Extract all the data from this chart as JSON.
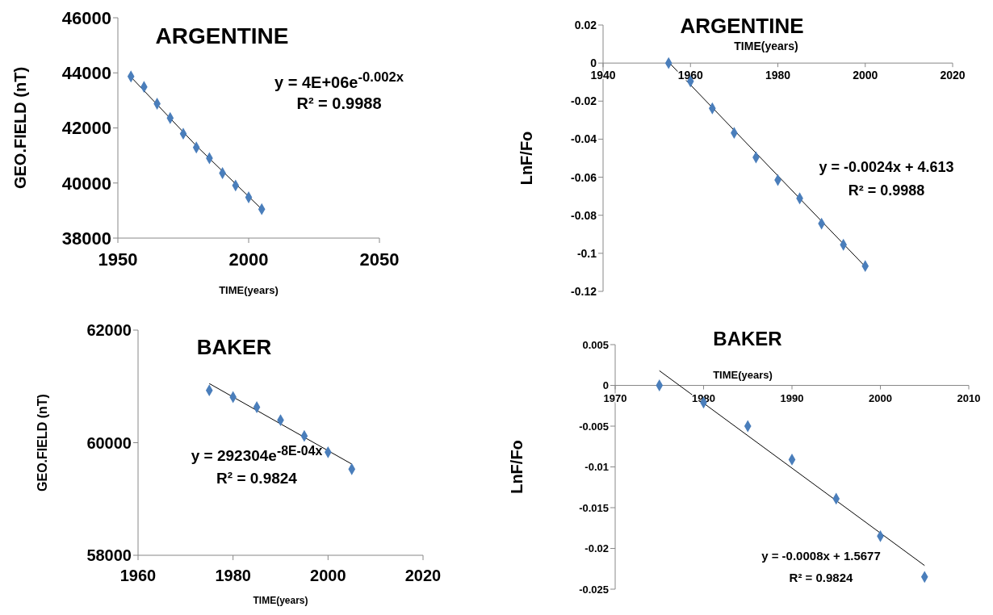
{
  "chart_data": [
    {
      "type": "scatter",
      "title": "ARGENTINE",
      "xlabel": "TIME(years)",
      "ylabel": "GEO.FIELD (nT)",
      "xlim": [
        1950,
        2050
      ],
      "xticks": [
        1950,
        2000,
        2050
      ],
      "ylim": [
        38000,
        46000
      ],
      "yticks": [
        38000,
        40000,
        42000,
        44000,
        46000
      ],
      "marker": "diamond",
      "annotations": [
        "y = 4E+06e$^{-0.002x}$",
        "R² = 0.9988"
      ],
      "series": [
        {
          "color": "#4a7ebb",
          "x": [
            1955,
            1960,
            1965,
            1970,
            1975,
            1980,
            1985,
            1990,
            1995,
            2000,
            2005
          ],
          "values": [
            43870,
            43490,
            42880,
            42360,
            41790,
            41290,
            40900,
            40360,
            39910,
            39480,
            39050
          ]
        },
        {
          "type": "line",
          "color": "#000000",
          "marker": "none",
          "x": [
            1955,
            1980,
            2005
          ],
          "values": [
            43850,
            41350,
            39050
          ]
        }
      ]
    },
    {
      "type": "scatter",
      "title": "ARGENTINE",
      "xlabel": "TIME(years)",
      "ylabel": "LnF/Fo",
      "xlim": [
        1940,
        2020
      ],
      "xticks": [
        1940,
        1960,
        1980,
        2000,
        2020
      ],
      "ylim": [
        -0.12,
        0.02
      ],
      "yticks": [
        -0.12,
        -0.1,
        -0.08,
        -0.06,
        -0.04,
        -0.02,
        0,
        0.02
      ],
      "marker": "diamond",
      "annotations": [
        "y = -0.0024x + 4.613",
        "R² = 0.9988"
      ],
      "series": [
        {
          "color": "#4a7ebb",
          "x": [
            1955,
            1960,
            1965,
            1970,
            1975,
            1980,
            1985,
            1990,
            1995,
            2000
          ],
          "values": [
            0,
            -0.0096,
            -0.0238,
            -0.0367,
            -0.0496,
            -0.0615,
            -0.0711,
            -0.0844,
            -0.0955,
            -0.1067
          ]
        },
        {
          "type": "line",
          "color": "#000000",
          "marker": "none",
          "x": [
            1955,
            2000
          ],
          "values": [
            0.0005,
            -0.107
          ]
        }
      ]
    },
    {
      "type": "scatter",
      "title": "BAKER",
      "xlabel": "TIME(years)",
      "ylabel": "GEO.FIELD (nT)",
      "xlim": [
        1960,
        2020
      ],
      "xticks": [
        1960,
        1980,
        2000,
        2020
      ],
      "ylim": [
        58000,
        62000
      ],
      "yticks": [
        58000,
        60000,
        62000
      ],
      "marker": "diamond",
      "annotations": [
        "y = 292304e$^{-8E-04x}$",
        "R² = 0.9824"
      ],
      "series": [
        {
          "color": "#4a7ebb",
          "x": [
            1975,
            1980,
            1985,
            1990,
            1995,
            2000,
            2005
          ],
          "values": [
            60930,
            60810,
            60630,
            60400,
            60120,
            59830,
            59530
          ]
        },
        {
          "type": "line",
          "color": "#000000",
          "marker": "none",
          "x": [
            1975,
            2005
          ],
          "values": [
            61050,
            59620
          ]
        }
      ]
    },
    {
      "type": "scatter",
      "title": "BAKER",
      "xlabel": "TIME(years)",
      "ylabel": "LnF/Fo",
      "xlim": [
        1970,
        2010
      ],
      "xticks": [
        1970,
        1980,
        1990,
        2000,
        2010
      ],
      "ylim": [
        -0.025,
        0.005
      ],
      "yticks": [
        -0.025,
        -0.02,
        -0.015,
        -0.01,
        -0.005,
        0,
        0.005
      ],
      "marker": "diamond",
      "annotations": [
        "y = -0.0008x + 1.5677",
        "R² = 0.9824"
      ],
      "series": [
        {
          "color": "#4a7ebb",
          "x": [
            1975,
            1980,
            1985,
            1990,
            1995,
            2000,
            2005
          ],
          "values": [
            0,
            -0.0021,
            -0.005,
            -0.0091,
            -0.0139,
            -0.0185,
            -0.0235
          ]
        },
        {
          "type": "line",
          "color": "#000000",
          "marker": "none",
          "x": [
            1975,
            2005
          ],
          "values": [
            0.0018,
            -0.0221
          ]
        }
      ]
    }
  ]
}
